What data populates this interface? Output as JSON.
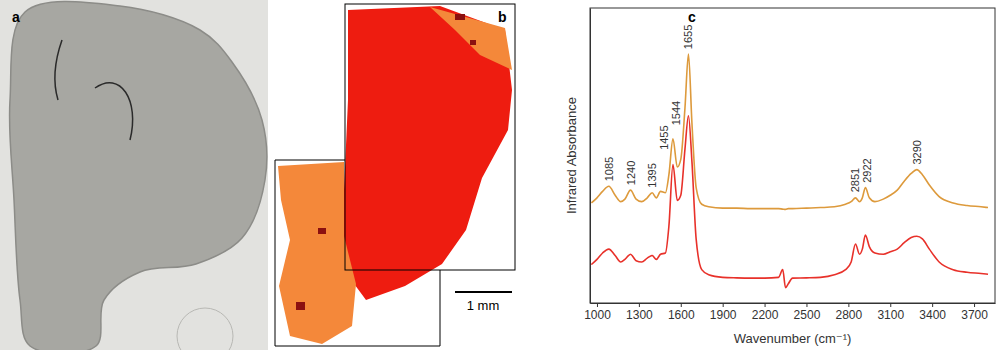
{
  "figure": {
    "panel_labels": [
      "a",
      "b",
      "c"
    ],
    "scale_bar_label": "1 mm"
  },
  "chart_data": {
    "type": "line",
    "x_label": "Wavenumber (cm⁻¹)",
    "y_label": "Infrared Absorbance",
    "x": [
      960,
      1000,
      1040,
      1085,
      1130,
      1170,
      1200,
      1240,
      1280,
      1320,
      1360,
      1395,
      1425,
      1455,
      1490,
      1515,
      1544,
      1575,
      1600,
      1630,
      1655,
      1680,
      1710,
      1750,
      1800,
      1900,
      2000,
      2100,
      2200,
      2300,
      2330,
      2350,
      2370,
      2400,
      2500,
      2600,
      2700,
      2780,
      2820,
      2851,
      2880,
      2900,
      2922,
      2950,
      2990,
      3050,
      3100,
      3150,
      3200,
      3250,
      3290,
      3330,
      3380,
      3450,
      3550,
      3650,
      3750,
      3800
    ],
    "series": [
      {
        "color": "#dd9a3c",
        "values": [
          3.9,
          4.1,
          4.35,
          4.55,
          4.2,
          3.95,
          4.05,
          4.4,
          4.05,
          3.95,
          4.1,
          4.3,
          4.1,
          4.35,
          4.3,
          5.0,
          6.4,
          5.3,
          5.6,
          7.6,
          9.7,
          7.0,
          4.5,
          3.85,
          3.75,
          3.7,
          3.7,
          3.68,
          3.68,
          3.68,
          3.66,
          3.65,
          3.68,
          3.68,
          3.7,
          3.72,
          3.75,
          3.85,
          3.95,
          4.1,
          3.95,
          4.1,
          4.5,
          4.1,
          3.95,
          4.05,
          4.2,
          4.4,
          4.75,
          5.05,
          5.2,
          5.0,
          4.6,
          4.15,
          3.9,
          3.8,
          3.75,
          3.72
        ]
      },
      {
        "color": "#e8312a",
        "values": [
          1.5,
          1.7,
          1.95,
          2.1,
          1.85,
          1.6,
          1.7,
          1.9,
          1.65,
          1.6,
          1.75,
          1.85,
          1.7,
          1.9,
          1.95,
          3.0,
          5.4,
          4.0,
          4.2,
          6.0,
          7.3,
          5.5,
          2.5,
          1.3,
          1.1,
          1.0,
          0.98,
          0.97,
          0.97,
          1.0,
          1.3,
          0.6,
          0.75,
          0.97,
          0.98,
          1.0,
          1.1,
          1.3,
          1.6,
          2.3,
          1.9,
          2.1,
          2.65,
          2.2,
          1.95,
          1.9,
          2.0,
          2.1,
          2.35,
          2.55,
          2.6,
          2.5,
          2.1,
          1.6,
          1.3,
          1.2,
          1.15,
          1.12
        ]
      }
    ],
    "xlim": [
      950,
      3850
    ],
    "xticks": [
      1000,
      1300,
      1600,
      1900,
      2200,
      2500,
      2800,
      3100,
      3400,
      3700
    ],
    "ylim": [
      0,
      11.5
    ],
    "tick_labels": "x",
    "grid": false,
    "annotations": [
      {
        "text": "1085",
        "x": 1085
      },
      {
        "text": "1240",
        "x": 1240
      },
      {
        "text": "1395",
        "x": 1395
      },
      {
        "text": "1455",
        "x": 1455
      },
      {
        "text": "1544",
        "x": 1544
      },
      {
        "text": "1655",
        "x": 1655
      },
      {
        "text": "2851",
        "x": 2851
      },
      {
        "text": "2922",
        "x": 2922
      },
      {
        "text": "3290",
        "x": 3290
      }
    ]
  }
}
